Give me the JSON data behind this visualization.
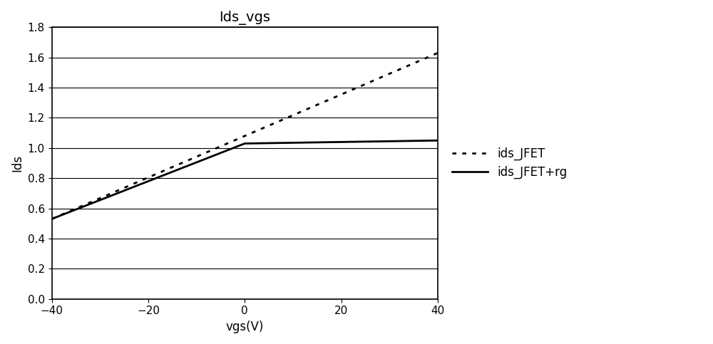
{
  "title": "Ids_vgs",
  "xlabel": "vgs(V)",
  "ylabel": "Ids",
  "xlim": [
    -40,
    40
  ],
  "ylim": [
    0,
    1.8
  ],
  "xticks": [
    -40,
    -20,
    0,
    20,
    40
  ],
  "yticks": [
    0,
    0.2,
    0.4,
    0.6,
    0.8,
    1.0,
    1.2,
    1.4,
    1.6,
    1.8
  ],
  "line1_label": "ids_JFET",
  "line1_style": "dotted",
  "line1_color": "#000000",
  "line1_x": [
    -40,
    40
  ],
  "line1_y": [
    0.53,
    1.63
  ],
  "line2_label": "ids_JFET+rg",
  "line2_style": "solid",
  "line2_color": "#000000",
  "line2_x": [
    -40,
    40
  ],
  "line2_y": [
    0.53,
    1.05
  ],
  "linewidth": 2.0,
  "background_color": "#ffffff",
  "border_color": "#000000",
  "grid_color": "#000000",
  "grid_linewidth": 0.8,
  "title_fontsize": 14,
  "label_fontsize": 12,
  "tick_fontsize": 11,
  "legend_fontsize": 12
}
